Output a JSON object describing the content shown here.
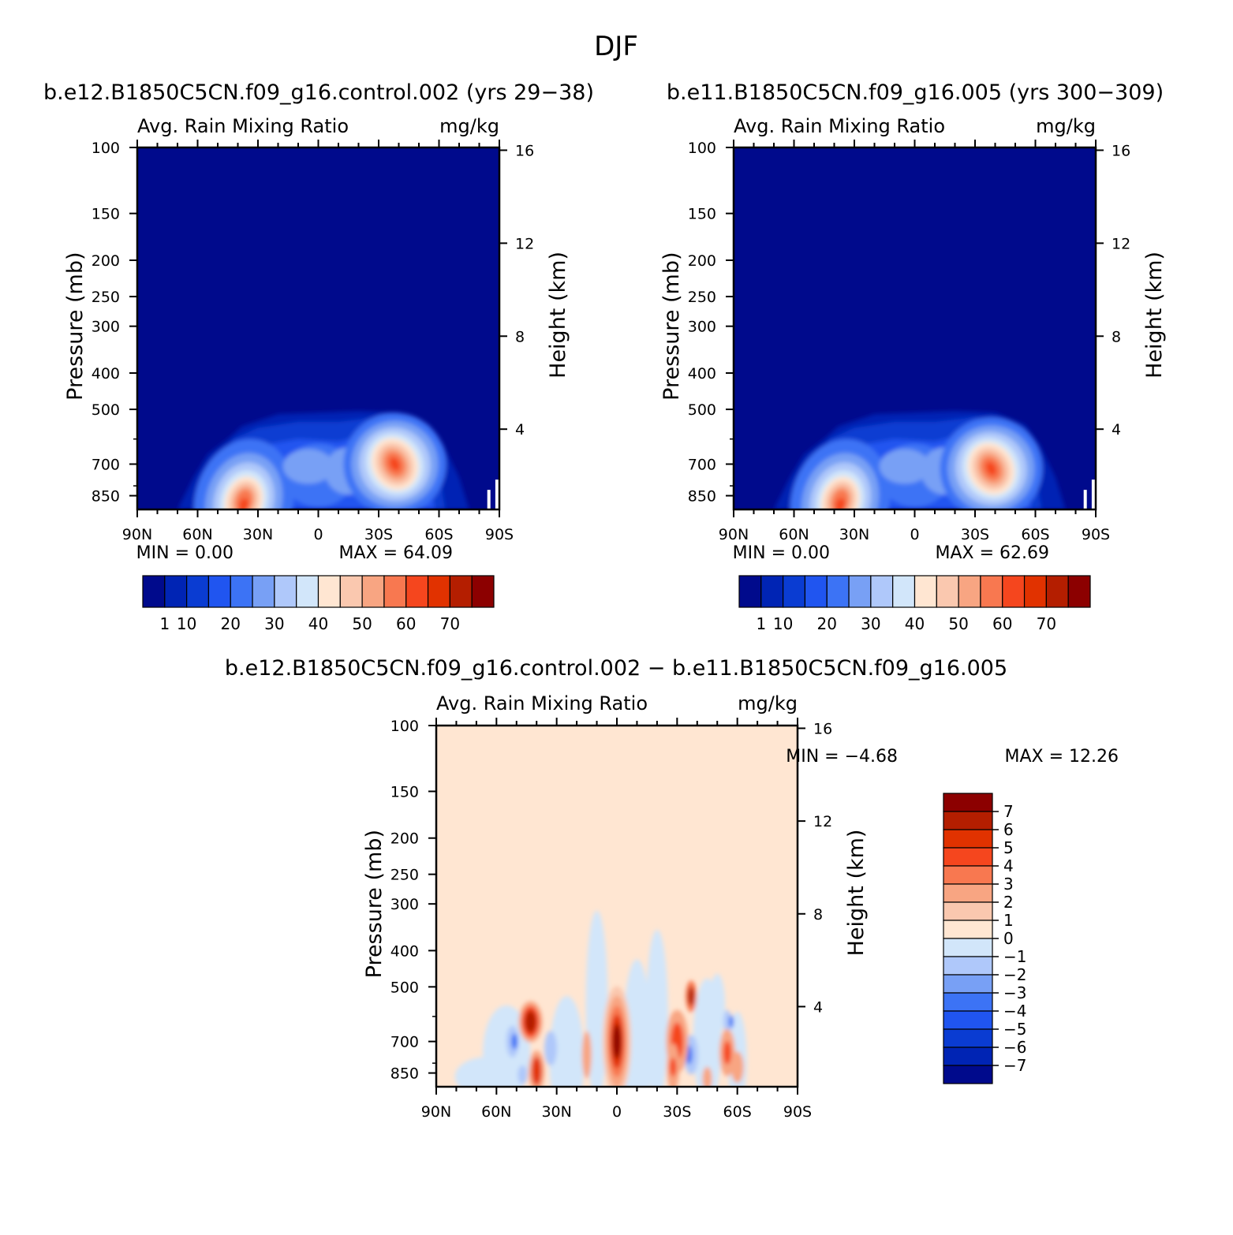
{
  "figure_title": "DJF",
  "colors": {
    "seq": [
      "#000a8c",
      "#0024b4",
      "#0a3cd2",
      "#2055f0",
      "#3c73f5",
      "#78a0f5",
      "#afc8fa",
      "#d2e6fa",
      "#ffe6d2",
      "#fac8af",
      "#f8a582",
      "#f87850",
      "#f5461e",
      "#e13200",
      "#b41e00",
      "#8c0000"
    ],
    "diff": [
      "#000a8c",
      "#0024b4",
      "#0a3cd2",
      "#2055f0",
      "#3c73f5",
      "#78a0f5",
      "#afc8fa",
      "#d2e6fa",
      "#ffe6d2",
      "#fac8af",
      "#f8a582",
      "#f87850",
      "#f5461e",
      "#e13200",
      "#b41e00",
      "#8c0000"
    ]
  },
  "panels": [
    {
      "title": "b.e12.B1850C5CN.f09_g16.control.002 (yrs 29−38)",
      "left_string": "Avg. Rain Mixing Ratio",
      "right_string": "mg/kg",
      "min_text": "MIN =     0.00",
      "max_text": "MAX =    64.09",
      "colorbar_labels": [
        "1",
        "10",
        "20",
        "30",
        "40",
        "50",
        "60",
        "70"
      ]
    },
    {
      "title": "b.e11.B1850C5CN.f09_g16.005 (yrs 300−309)",
      "left_string": "Avg. Rain Mixing Ratio",
      "right_string": "mg/kg",
      "min_text": "MIN =     0.00",
      "max_text": "MAX =    62.69",
      "colorbar_labels": [
        "1",
        "10",
        "20",
        "30",
        "40",
        "50",
        "60",
        "70"
      ]
    },
    {
      "title": "b.e12.B1850C5CN.f09_g16.control.002 − b.e11.B1850C5CN.f09_g16.005",
      "left_string": "Avg. Rain Mixing Ratio",
      "right_string": "mg/kg",
      "min_text": "MIN =   −4.68",
      "max_text": "MAX =    12.26",
      "colorbar_labels": [
        "7",
        "6",
        "5",
        "4",
        "3",
        "2",
        "1",
        "0",
        "−1",
        "−2",
        "−3",
        "−4",
        "−5",
        "−6",
        "−7"
      ]
    }
  ],
  "chart_data": [
    {
      "type": "heatmap",
      "title": "b.e12.B1850C5CN.f09_g16.control.002 (yrs 29−38)",
      "xlabel": "",
      "ylabel": "Pressure (mb)",
      "y2label": "Height (km)",
      "x_ticks": [
        "90N",
        "60N",
        "30N",
        "0",
        "30S",
        "60S",
        "90S"
      ],
      "x_values": [
        90,
        60,
        30,
        0,
        -30,
        -60,
        -90
      ],
      "y_ticks": [
        "100",
        "150",
        "200",
        "250",
        "300",
        "400",
        "500",
        "700",
        "850"
      ],
      "y_values": [
        100,
        150,
        200,
        250,
        300,
        400,
        500,
        700,
        850
      ],
      "ylim": [
        100,
        925
      ],
      "y2_ticks": [
        "16",
        "12",
        "8",
        "4"
      ],
      "y2_values": [
        16,
        12,
        8,
        4
      ],
      "levels": [
        1,
        5,
        10,
        15,
        20,
        25,
        30,
        35,
        40,
        45,
        50,
        55,
        60,
        65,
        70
      ],
      "min": 0.0,
      "max": 64.09,
      "features": [
        {
          "name": "NH midlatitude max",
          "lat": 37,
          "p": 880,
          "value": 64
        },
        {
          "name": "SH midlatitude max",
          "lat": -38,
          "p": 700,
          "value": 60
        },
        {
          "name": "tropical",
          "lat": 0,
          "p": 750,
          "value": 20
        }
      ]
    },
    {
      "type": "heatmap",
      "title": "b.e11.B1850C5CN.f09_g16.005 (yrs 300−309)",
      "xlabel": "",
      "ylabel": "Pressure (mb)",
      "y2label": "Height (km)",
      "x_ticks": [
        "90N",
        "60N",
        "30N",
        "0",
        "30S",
        "60S",
        "90S"
      ],
      "x_values": [
        90,
        60,
        30,
        0,
        -30,
        -60,
        -90
      ],
      "y_ticks": [
        "100",
        "150",
        "200",
        "250",
        "300",
        "400",
        "500",
        "700",
        "850"
      ],
      "y_values": [
        100,
        150,
        200,
        250,
        300,
        400,
        500,
        700,
        850
      ],
      "ylim": [
        100,
        925
      ],
      "y2_ticks": [
        "16",
        "12",
        "8",
        "4"
      ],
      "y2_values": [
        16,
        12,
        8,
        4
      ],
      "levels": [
        1,
        5,
        10,
        15,
        20,
        25,
        30,
        35,
        40,
        45,
        50,
        55,
        60,
        65,
        70
      ],
      "min": 0.0,
      "max": 62.69,
      "features": [
        {
          "name": "NH midlatitude max",
          "lat": 37,
          "p": 880,
          "value": 62
        },
        {
          "name": "SH midlatitude max",
          "lat": -38,
          "p": 720,
          "value": 60
        },
        {
          "name": "tropical",
          "lat": 0,
          "p": 750,
          "value": 17
        }
      ]
    },
    {
      "type": "heatmap",
      "title": "b.e12.B1850C5CN.f09_g16.control.002 − b.e11.B1850C5CN.f09_g16.005",
      "xlabel": "",
      "ylabel": "Pressure (mb)",
      "y2label": "Height (km)",
      "x_ticks": [
        "90N",
        "60N",
        "30N",
        "0",
        "30S",
        "60S",
        "90S"
      ],
      "x_values": [
        90,
        60,
        30,
        0,
        -30,
        -60,
        -90
      ],
      "y_ticks": [
        "100",
        "150",
        "200",
        "250",
        "300",
        "400",
        "500",
        "700",
        "850"
      ],
      "y_values": [
        100,
        150,
        200,
        250,
        300,
        400,
        500,
        700,
        850
      ],
      "ylim": [
        100,
        925
      ],
      "y2_ticks": [
        "16",
        "12",
        "8",
        "4"
      ],
      "y2_values": [
        16,
        12,
        8,
        4
      ],
      "levels": [
        -7,
        -6,
        -5,
        -4,
        -3,
        -2,
        -1,
        0,
        1,
        2,
        3,
        4,
        5,
        6,
        7
      ],
      "min": -4.68,
      "max": 12.26,
      "features": [
        {
          "name": "equatorial max",
          "lat": 0,
          "p": 700,
          "value": 12
        },
        {
          "name": "NH anomaly",
          "lat": 43,
          "p": 620,
          "value": 6
        },
        {
          "name": "NH lower anomaly",
          "lat": 40,
          "p": 840,
          "value": 5
        },
        {
          "name": "SH anomaly",
          "lat": -30,
          "p": 700,
          "value": 5
        },
        {
          "name": "SH upper anomaly",
          "lat": -37,
          "p": 530,
          "value": 6
        }
      ]
    }
  ]
}
